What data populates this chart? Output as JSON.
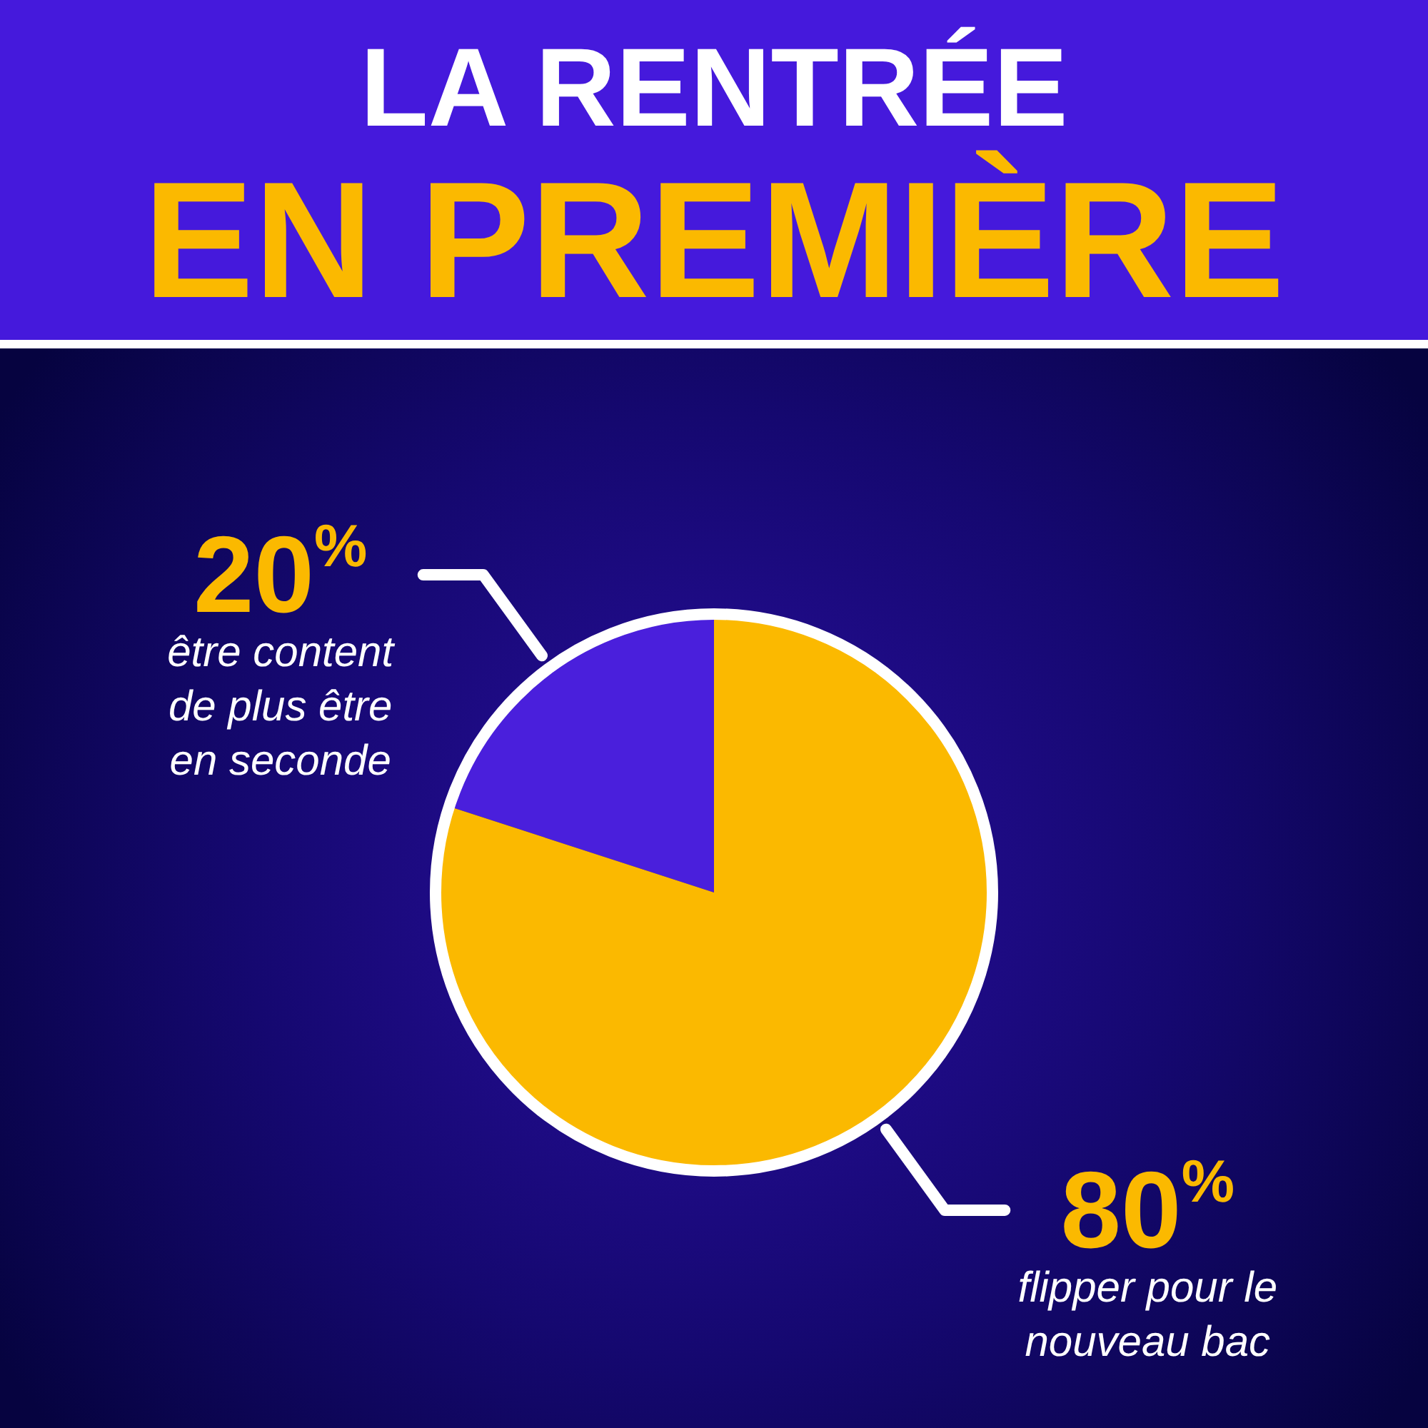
{
  "chart_data": {
    "type": "pie",
    "title": "LA RENTRÉE",
    "subtitle": "EN PREMIÈRE",
    "categories": [
      "être content de plus être en seconde",
      "flipper pour le nouveau bac"
    ],
    "values": [
      20,
      80
    ],
    "colors": [
      "#4a1fdc",
      "#fbb900"
    ],
    "value_labels": [
      "20$^{%}$",
      "80$^{%}$"
    ]
  }
}
